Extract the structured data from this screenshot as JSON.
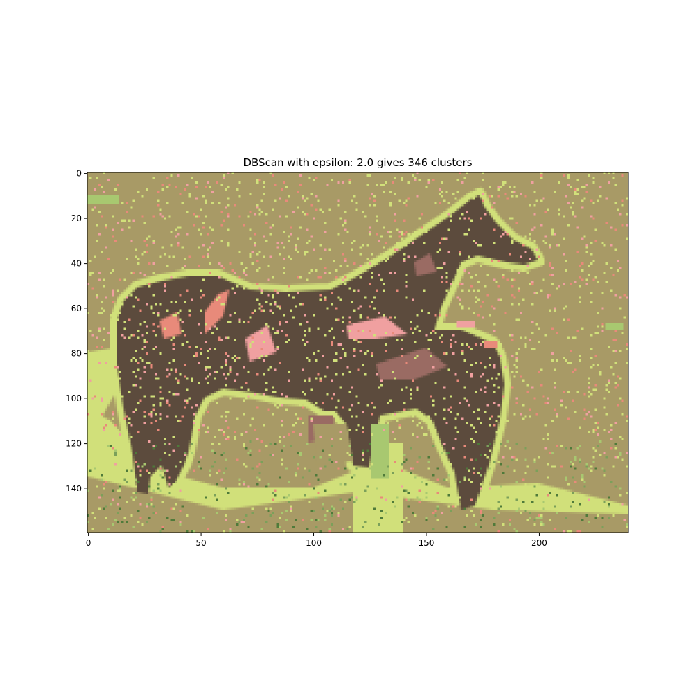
{
  "chart_data": {
    "type": "heatmap",
    "title": "DBScan with epsilon: 2.0 gives 346 clusters",
    "xlabel": "",
    "ylabel": "",
    "image_size": {
      "cols": 240,
      "rows": 160
    },
    "xlim": [
      -0.5,
      239.5
    ],
    "ylim": [
      159.5,
      -0.5
    ],
    "y_axis_inverted": true,
    "grid": false,
    "legend": "none",
    "xticks": [
      0,
      50,
      100,
      150,
      200
    ],
    "yticks": [
      0,
      20,
      40,
      60,
      80,
      100,
      120,
      140
    ],
    "colors": {
      "background_cluster": "#a89a66",
      "edge_cluster": "#d1e07a",
      "horse_body_cluster": "#5c4b3d",
      "mauve_cluster": "#9a6b63",
      "salmon_cluster": "#e88a7a",
      "pink_cluster": "#f0a0a0",
      "light_green_cluster": "#a8c870",
      "mid_green_cluster": "#7ba05a",
      "dark_green_cluster": "#4f7a3a"
    }
  }
}
